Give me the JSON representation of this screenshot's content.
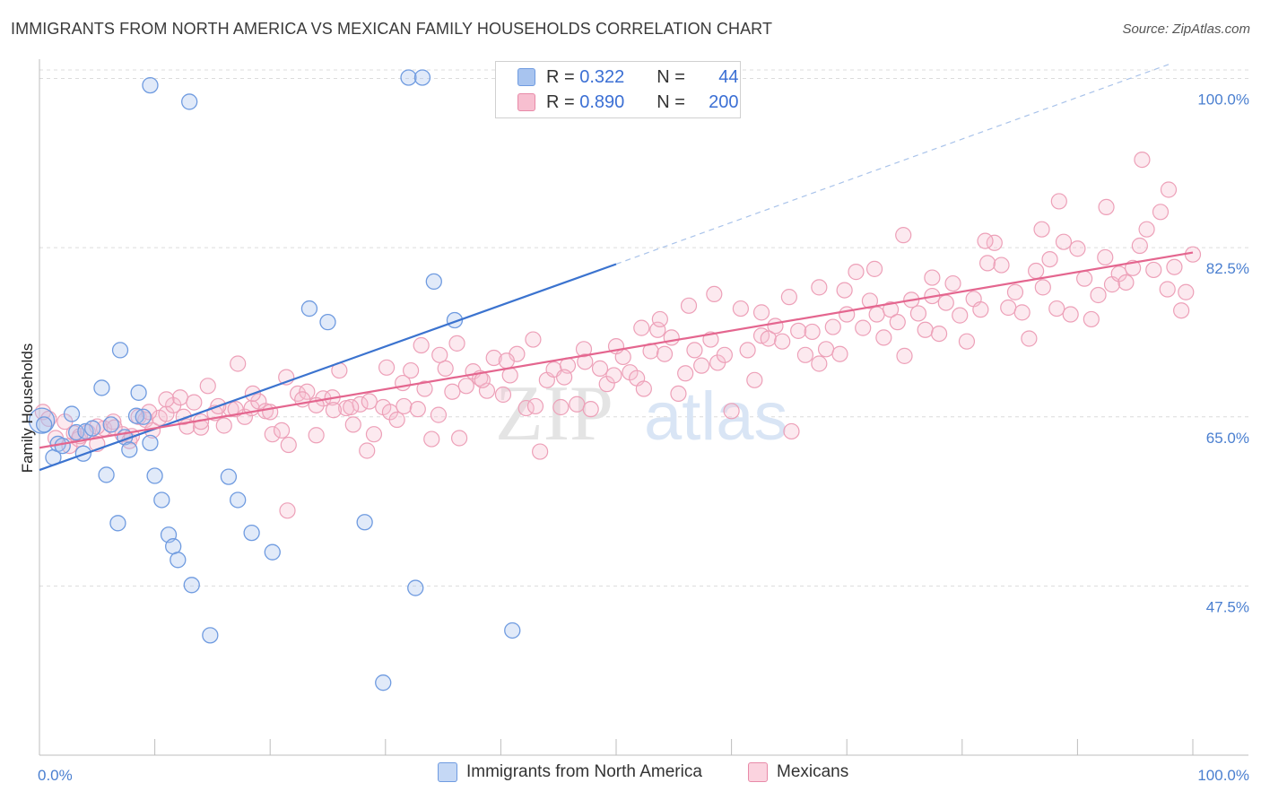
{
  "header": {
    "title": "IMMIGRANTS FROM NORTH AMERICA VS MEXICAN FAMILY HOUSEHOLDS CORRELATION CHART",
    "source": "Source: ZipAtlas.com"
  },
  "watermark": {
    "zip": "ZIP",
    "atlas": "atlas"
  },
  "legend": {
    "rows": [
      {
        "r_label": "R =",
        "r_value": "0.322",
        "n_label": "N =",
        "n_value": "44",
        "color": "#a8c4ef",
        "border": "#6f9be0"
      },
      {
        "r_label": "R =",
        "r_value": "0.890",
        "n_label": "N =",
        "n_value": "200",
        "color": "#f7bfd0",
        "border": "#e88aa8"
      }
    ]
  },
  "bottom_legend": {
    "items": [
      {
        "label": "Immigrants from North America",
        "color": "#c5d8f5",
        "border": "#6f9be0"
      },
      {
        "label": "Mexicans",
        "color": "#fbd3df",
        "border": "#e88aa8"
      }
    ]
  },
  "chart_data": {
    "type": "scatter",
    "title": "IMMIGRANTS FROM NORTH AMERICA VS MEXICAN FAMILY HOUSEHOLDS CORRELATION CHART",
    "xlabel": "",
    "ylabel": "Family Households",
    "xlim": [
      0,
      100
    ],
    "ylim": [
      30,
      102
    ],
    "x_tick_labels": [
      "0.0%",
      "100.0%"
    ],
    "y_ticks": [
      47.5,
      65.0,
      82.5,
      100.0
    ],
    "y_tick_labels": [
      "47.5%",
      "65.0%",
      "82.5%",
      "100.0%"
    ],
    "grid": true,
    "colors": {
      "blue": "#4f86d8",
      "pink": "#e8799c",
      "blue_line": "#3b73cf",
      "pink_line": "#e4668f"
    },
    "series": [
      {
        "name": "Immigrants from North America",
        "r": 0.322,
        "n": 44,
        "trend": {
          "x0": 0,
          "y0": 59.5,
          "x1": 50,
          "y1": 80.8,
          "x_ext": 98,
          "y_ext": 101.5
        },
        "points": [
          [
            0.2,
            64.6
          ],
          [
            0.4,
            64.2
          ],
          [
            1.2,
            60.8
          ],
          [
            1.6,
            62.2
          ],
          [
            2.0,
            62.0
          ],
          [
            2.8,
            65.3
          ],
          [
            3.2,
            63.4
          ],
          [
            3.8,
            61.2
          ],
          [
            4.0,
            63.5
          ],
          [
            4.6,
            63.8
          ],
          [
            5.4,
            68.0
          ],
          [
            5.8,
            59.0
          ],
          [
            6.2,
            64.2
          ],
          [
            6.8,
            54.0
          ],
          [
            7.0,
            71.9
          ],
          [
            7.4,
            62.9
          ],
          [
            7.8,
            61.6
          ],
          [
            8.4,
            65.1
          ],
          [
            9.0,
            65.0
          ],
          [
            9.6,
            62.3
          ],
          [
            10.0,
            58.9
          ],
          [
            10.6,
            56.4
          ],
          [
            11.2,
            52.8
          ],
          [
            11.6,
            51.6
          ],
          [
            12.0,
            50.2
          ],
          [
            13.2,
            47.6
          ],
          [
            14.8,
            42.4
          ],
          [
            16.4,
            58.8
          ],
          [
            17.2,
            56.4
          ],
          [
            18.4,
            53.0
          ],
          [
            20.2,
            51.0
          ],
          [
            23.4,
            76.2
          ],
          [
            25.0,
            74.8
          ],
          [
            28.2,
            54.1
          ],
          [
            29.8,
            37.5
          ],
          [
            32.6,
            47.3
          ],
          [
            34.2,
            79.0
          ],
          [
            36.0,
            75.0
          ],
          [
            41.0,
            42.9
          ],
          [
            9.6,
            99.3
          ],
          [
            13.0,
            97.6
          ],
          [
            32.0,
            100.1
          ],
          [
            33.2,
            100.1
          ],
          [
            8.6,
            67.5
          ]
        ]
      },
      {
        "name": "Mexicans",
        "r": 0.89,
        "n": 200,
        "trend": {
          "x0": 0,
          "y0": 61.8,
          "x1": 100,
          "y1": 82.0
        },
        "points": [
          [
            0.3,
            65.5
          ],
          [
            0.8,
            64.8
          ],
          [
            1.4,
            62.8
          ],
          [
            2.2,
            64.5
          ],
          [
            2.6,
            62.0
          ],
          [
            3.0,
            63.3
          ],
          [
            3.4,
            62.7
          ],
          [
            4.2,
            63.4
          ],
          [
            5.0,
            62.2
          ],
          [
            5.6,
            63.8
          ],
          [
            6.4,
            64.5
          ],
          [
            7.2,
            63.2
          ],
          [
            7.8,
            62.5
          ],
          [
            8.6,
            65.0
          ],
          [
            9.2,
            64.7
          ],
          [
            9.8,
            63.6
          ],
          [
            10.4,
            64.9
          ],
          [
            11.0,
            65.3
          ],
          [
            11.6,
            66.2
          ],
          [
            12.2,
            67.0
          ],
          [
            12.8,
            64.0
          ],
          [
            13.4,
            66.5
          ],
          [
            14.0,
            63.9
          ],
          [
            14.6,
            68.2
          ],
          [
            15.2,
            65.4
          ],
          [
            16.0,
            64.1
          ],
          [
            16.6,
            65.8
          ],
          [
            17.2,
            70.5
          ],
          [
            17.8,
            65.0
          ],
          [
            18.4,
            65.9
          ],
          [
            19.0,
            66.6
          ],
          [
            19.6,
            65.6
          ],
          [
            20.2,
            63.2
          ],
          [
            21.0,
            63.6
          ],
          [
            21.6,
            62.1
          ],
          [
            22.4,
            67.4
          ],
          [
            23.2,
            67.6
          ],
          [
            24.0,
            63.1
          ],
          [
            24.6,
            66.9
          ],
          [
            25.4,
            67.0
          ],
          [
            26.0,
            69.8
          ],
          [
            26.6,
            65.9
          ],
          [
            27.2,
            64.2
          ],
          [
            27.8,
            66.3
          ],
          [
            28.4,
            61.5
          ],
          [
            29.0,
            63.2
          ],
          [
            29.8,
            66.0
          ],
          [
            30.4,
            65.5
          ],
          [
            31.0,
            64.7
          ],
          [
            31.6,
            66.1
          ],
          [
            32.2,
            69.8
          ],
          [
            32.8,
            65.8
          ],
          [
            33.4,
            67.9
          ],
          [
            34.0,
            62.7
          ],
          [
            34.6,
            65.2
          ],
          [
            35.2,
            70.0
          ],
          [
            35.8,
            67.6
          ],
          [
            36.4,
            62.8
          ],
          [
            37.0,
            68.2
          ],
          [
            37.6,
            69.7
          ],
          [
            38.2,
            69.0
          ],
          [
            38.8,
            67.7
          ],
          [
            39.4,
            71.1
          ],
          [
            40.2,
            67.3
          ],
          [
            40.8,
            69.3
          ],
          [
            41.4,
            71.5
          ],
          [
            42.2,
            65.9
          ],
          [
            42.8,
            73.0
          ],
          [
            43.4,
            61.4
          ],
          [
            44.0,
            68.8
          ],
          [
            44.6,
            69.9
          ],
          [
            45.2,
            66.0
          ],
          [
            45.8,
            70.3
          ],
          [
            46.6,
            66.3
          ],
          [
            47.2,
            72.0
          ],
          [
            47.8,
            65.8
          ],
          [
            48.6,
            70.0
          ],
          [
            49.2,
            68.4
          ],
          [
            49.8,
            69.3
          ],
          [
            50.6,
            71.2
          ],
          [
            51.2,
            69.6
          ],
          [
            51.8,
            69.0
          ],
          [
            52.4,
            67.9
          ],
          [
            53.0,
            71.8
          ],
          [
            53.6,
            74.0
          ],
          [
            54.2,
            71.5
          ],
          [
            54.8,
            73.2
          ],
          [
            55.4,
            67.4
          ],
          [
            56.0,
            69.5
          ],
          [
            56.8,
            71.9
          ],
          [
            57.4,
            70.3
          ],
          [
            58.2,
            73.0
          ],
          [
            58.8,
            70.6
          ],
          [
            59.4,
            71.4
          ],
          [
            60.0,
            65.6
          ],
          [
            60.8,
            76.2
          ],
          [
            61.4,
            71.9
          ],
          [
            62.0,
            68.8
          ],
          [
            62.6,
            73.4
          ],
          [
            63.2,
            73.1
          ],
          [
            63.8,
            74.4
          ],
          [
            64.4,
            72.8
          ],
          [
            65.2,
            63.5
          ],
          [
            65.8,
            73.9
          ],
          [
            66.4,
            71.4
          ],
          [
            67.0,
            73.8
          ],
          [
            67.6,
            70.5
          ],
          [
            68.2,
            72.0
          ],
          [
            68.8,
            74.3
          ],
          [
            69.4,
            71.5
          ],
          [
            70.0,
            75.6
          ],
          [
            70.8,
            80.0
          ],
          [
            71.4,
            74.2
          ],
          [
            72.0,
            77.0
          ],
          [
            72.6,
            75.6
          ],
          [
            73.2,
            73.2
          ],
          [
            73.8,
            76.1
          ],
          [
            74.4,
            74.8
          ],
          [
            75.0,
            71.3
          ],
          [
            75.6,
            77.1
          ],
          [
            76.2,
            75.7
          ],
          [
            76.8,
            74.0
          ],
          [
            77.4,
            77.5
          ],
          [
            78.0,
            73.6
          ],
          [
            78.6,
            76.8
          ],
          [
            79.2,
            78.8
          ],
          [
            79.8,
            75.5
          ],
          [
            80.4,
            72.8
          ],
          [
            81.0,
            77.2
          ],
          [
            81.6,
            76.1
          ],
          [
            82.2,
            80.9
          ],
          [
            82.8,
            83.0
          ],
          [
            83.4,
            80.7
          ],
          [
            84.0,
            76.3
          ],
          [
            84.6,
            77.9
          ],
          [
            85.2,
            75.8
          ],
          [
            85.8,
            73.1
          ],
          [
            86.4,
            80.1
          ],
          [
            87.0,
            78.4
          ],
          [
            87.6,
            81.3
          ],
          [
            88.2,
            76.2
          ],
          [
            88.8,
            83.1
          ],
          [
            89.4,
            75.6
          ],
          [
            90.0,
            82.4
          ],
          [
            90.6,
            79.3
          ],
          [
            91.2,
            75.1
          ],
          [
            91.8,
            77.6
          ],
          [
            92.4,
            81.5
          ],
          [
            93.0,
            78.7
          ],
          [
            93.6,
            79.8
          ],
          [
            94.2,
            78.9
          ],
          [
            94.8,
            80.4
          ],
          [
            95.4,
            82.7
          ],
          [
            96.0,
            84.4
          ],
          [
            96.6,
            80.2
          ],
          [
            97.2,
            86.2
          ],
          [
            97.8,
            78.2
          ],
          [
            98.4,
            80.5
          ],
          [
            99.0,
            76.0
          ],
          [
            99.4,
            77.9
          ],
          [
            100.0,
            81.8
          ],
          [
            95.6,
            91.6
          ],
          [
            97.9,
            88.5
          ],
          [
            92.5,
            86.7
          ],
          [
            88.4,
            87.3
          ],
          [
            86.9,
            84.4
          ],
          [
            82.0,
            83.2
          ],
          [
            77.4,
            79.4
          ],
          [
            74.9,
            83.8
          ],
          [
            72.4,
            80.3
          ],
          [
            69.8,
            78.1
          ],
          [
            67.6,
            78.4
          ],
          [
            65.0,
            77.4
          ],
          [
            62.6,
            75.8
          ],
          [
            58.5,
            77.7
          ],
          [
            56.3,
            76.5
          ],
          [
            53.8,
            75.1
          ],
          [
            52.2,
            74.2
          ],
          [
            50.0,
            72.3
          ],
          [
            47.3,
            70.7
          ],
          [
            45.5,
            69.1
          ],
          [
            43.0,
            66.1
          ],
          [
            40.5,
            70.8
          ],
          [
            38.4,
            68.8
          ],
          [
            36.2,
            72.6
          ],
          [
            34.7,
            71.4
          ],
          [
            33.1,
            72.4
          ],
          [
            31.5,
            68.5
          ],
          [
            30.1,
            70.1
          ],
          [
            28.6,
            66.6
          ],
          [
            27.0,
            66.0
          ],
          [
            25.5,
            65.7
          ],
          [
            24.0,
            66.2
          ],
          [
            22.8,
            66.8
          ],
          [
            21.4,
            69.1
          ],
          [
            20.0,
            65.5
          ],
          [
            18.5,
            67.4
          ],
          [
            17.0,
            65.8
          ],
          [
            15.5,
            66.1
          ],
          [
            14.0,
            64.5
          ],
          [
            12.5,
            65.0
          ],
          [
            11.0,
            66.8
          ],
          [
            9.5,
            65.5
          ],
          [
            8.0,
            63.0
          ],
          [
            6.5,
            63.9
          ],
          [
            5.0,
            64.0
          ],
          [
            3.5,
            63.0
          ],
          [
            21.5,
            55.3
          ]
        ]
      }
    ]
  }
}
